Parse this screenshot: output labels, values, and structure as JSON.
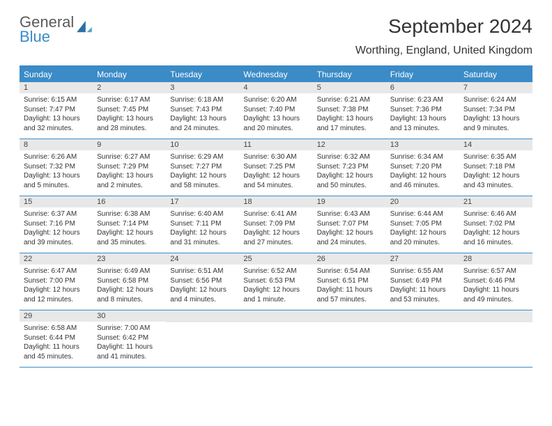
{
  "logo": {
    "line1": "General",
    "line2": "Blue"
  },
  "title": "September 2024",
  "location": "Worthing, England, United Kingdom",
  "header_bg": "#3b8bc7",
  "daynum_bg": "#e8e8e8",
  "text_color": "#333333",
  "day_names": [
    "Sunday",
    "Monday",
    "Tuesday",
    "Wednesday",
    "Thursday",
    "Friday",
    "Saturday"
  ],
  "weeks": [
    [
      {
        "n": "1",
        "sr": "6:15 AM",
        "ss": "7:47 PM",
        "dl": "13 hours and 32 minutes."
      },
      {
        "n": "2",
        "sr": "6:17 AM",
        "ss": "7:45 PM",
        "dl": "13 hours and 28 minutes."
      },
      {
        "n": "3",
        "sr": "6:18 AM",
        "ss": "7:43 PM",
        "dl": "13 hours and 24 minutes."
      },
      {
        "n": "4",
        "sr": "6:20 AM",
        "ss": "7:40 PM",
        "dl": "13 hours and 20 minutes."
      },
      {
        "n": "5",
        "sr": "6:21 AM",
        "ss": "7:38 PM",
        "dl": "13 hours and 17 minutes."
      },
      {
        "n": "6",
        "sr": "6:23 AM",
        "ss": "7:36 PM",
        "dl": "13 hours and 13 minutes."
      },
      {
        "n": "7",
        "sr": "6:24 AM",
        "ss": "7:34 PM",
        "dl": "13 hours and 9 minutes."
      }
    ],
    [
      {
        "n": "8",
        "sr": "6:26 AM",
        "ss": "7:32 PM",
        "dl": "13 hours and 5 minutes."
      },
      {
        "n": "9",
        "sr": "6:27 AM",
        "ss": "7:29 PM",
        "dl": "13 hours and 2 minutes."
      },
      {
        "n": "10",
        "sr": "6:29 AM",
        "ss": "7:27 PM",
        "dl": "12 hours and 58 minutes."
      },
      {
        "n": "11",
        "sr": "6:30 AM",
        "ss": "7:25 PM",
        "dl": "12 hours and 54 minutes."
      },
      {
        "n": "12",
        "sr": "6:32 AM",
        "ss": "7:23 PM",
        "dl": "12 hours and 50 minutes."
      },
      {
        "n": "13",
        "sr": "6:34 AM",
        "ss": "7:20 PM",
        "dl": "12 hours and 46 minutes."
      },
      {
        "n": "14",
        "sr": "6:35 AM",
        "ss": "7:18 PM",
        "dl": "12 hours and 43 minutes."
      }
    ],
    [
      {
        "n": "15",
        "sr": "6:37 AM",
        "ss": "7:16 PM",
        "dl": "12 hours and 39 minutes."
      },
      {
        "n": "16",
        "sr": "6:38 AM",
        "ss": "7:14 PM",
        "dl": "12 hours and 35 minutes."
      },
      {
        "n": "17",
        "sr": "6:40 AM",
        "ss": "7:11 PM",
        "dl": "12 hours and 31 minutes."
      },
      {
        "n": "18",
        "sr": "6:41 AM",
        "ss": "7:09 PM",
        "dl": "12 hours and 27 minutes."
      },
      {
        "n": "19",
        "sr": "6:43 AM",
        "ss": "7:07 PM",
        "dl": "12 hours and 24 minutes."
      },
      {
        "n": "20",
        "sr": "6:44 AM",
        "ss": "7:05 PM",
        "dl": "12 hours and 20 minutes."
      },
      {
        "n": "21",
        "sr": "6:46 AM",
        "ss": "7:02 PM",
        "dl": "12 hours and 16 minutes."
      }
    ],
    [
      {
        "n": "22",
        "sr": "6:47 AM",
        "ss": "7:00 PM",
        "dl": "12 hours and 12 minutes."
      },
      {
        "n": "23",
        "sr": "6:49 AM",
        "ss": "6:58 PM",
        "dl": "12 hours and 8 minutes."
      },
      {
        "n": "24",
        "sr": "6:51 AM",
        "ss": "6:56 PM",
        "dl": "12 hours and 4 minutes."
      },
      {
        "n": "25",
        "sr": "6:52 AM",
        "ss": "6:53 PM",
        "dl": "12 hours and 1 minute."
      },
      {
        "n": "26",
        "sr": "6:54 AM",
        "ss": "6:51 PM",
        "dl": "11 hours and 57 minutes."
      },
      {
        "n": "27",
        "sr": "6:55 AM",
        "ss": "6:49 PM",
        "dl": "11 hours and 53 minutes."
      },
      {
        "n": "28",
        "sr": "6:57 AM",
        "ss": "6:46 PM",
        "dl": "11 hours and 49 minutes."
      }
    ],
    [
      {
        "n": "29",
        "sr": "6:58 AM",
        "ss": "6:44 PM",
        "dl": "11 hours and 45 minutes."
      },
      {
        "n": "30",
        "sr": "7:00 AM",
        "ss": "6:42 PM",
        "dl": "11 hours and 41 minutes."
      },
      null,
      null,
      null,
      null,
      null
    ]
  ],
  "labels": {
    "sunrise": "Sunrise:",
    "sunset": "Sunset:",
    "daylight": "Daylight:"
  }
}
